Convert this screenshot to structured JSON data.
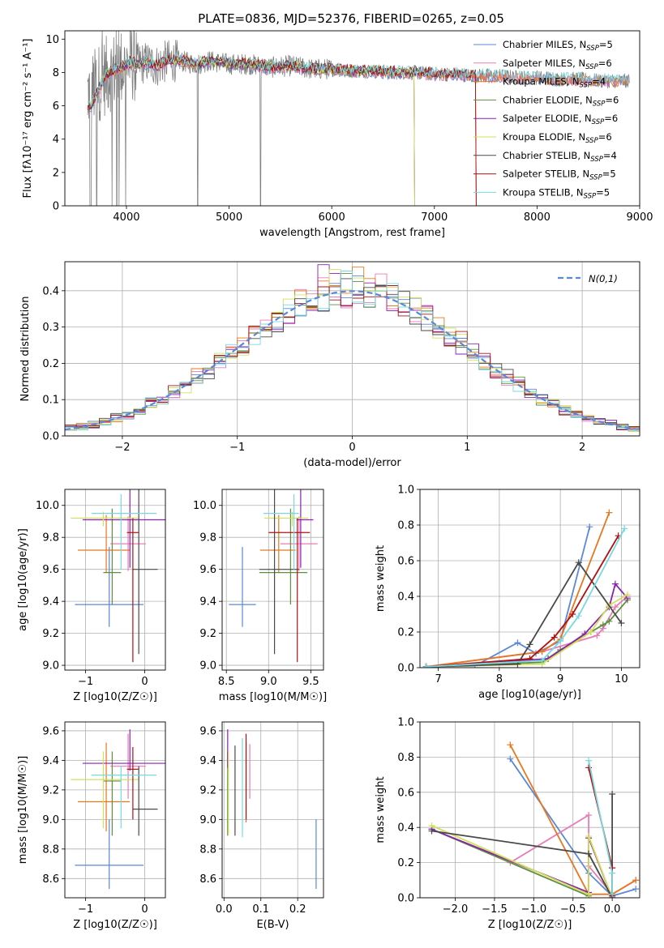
{
  "colors": {
    "Chabrier MILES": "#5b87d8",
    "Salpeter MILES": "#e87bb8",
    "Kroupa MILES": "#e6781f",
    "Chabrier ELODIE": "#5e8f3e",
    "Salpeter ELODIE": "#8a22b0",
    "Kroupa ELODIE": "#d2e05a",
    "Chabrier STELIB": "#4a4a4a",
    "Salpeter STELIB": "#b01010",
    "Kroupa STELIB": "#78d8e0"
  },
  "chart_data": [
    {
      "id": "spectrum",
      "type": "line",
      "title": "PLATE=0836, MJD=52376, FIBERID=0265, z=0.05",
      "xlabel": "wavelength [Angstrom, rest frame]",
      "ylabel": "Flux [fλ10⁻¹⁷ erg cm⁻² s⁻¹ A⁻¹]",
      "xlim": [
        3400,
        9000
      ],
      "ylim": [
        0,
        10.5
      ],
      "xticks": [
        4000,
        5000,
        6000,
        7000,
        8000,
        9000
      ],
      "yticks": [
        0,
        2,
        4,
        6,
        8,
        10
      ],
      "data_series": {
        "name": "",
        "color": "#808080",
        "x": [
          3650,
          3700,
          3750,
          3800,
          3850,
          3900,
          3950,
          4000,
          4050,
          4100,
          4200,
          4300,
          4400,
          4500,
          4600,
          4700,
          4800,
          4900,
          5000,
          5200,
          5400,
          5600,
          5800,
          6000,
          6200,
          6400,
          6600,
          6800,
          7000,
          7200,
          7400,
          7600,
          7800,
          8000,
          8200,
          8400,
          8600,
          8800
        ],
        "y": [
          6.8,
          7.2,
          7.5,
          7.8,
          8.0,
          8.2,
          8.3,
          8.5,
          8.6,
          8.5,
          8.6,
          8.4,
          8.7,
          8.7,
          8.6,
          8.5,
          8.7,
          8.6,
          8.5,
          8.5,
          8.3,
          8.4,
          8.2,
          8.2,
          8.1,
          8.1,
          8.0,
          8.0,
          7.9,
          7.9,
          7.8,
          7.8,
          7.7,
          7.7,
          7.6,
          7.6,
          7.5,
          7.5
        ]
      },
      "legend": [
        {
          "label": "Chabrier MILES, N",
          "ssp": 5
        },
        {
          "label": "Salpeter MILES, N",
          "ssp": 6
        },
        {
          "label": "Kroupa MILES, N",
          "ssp": 4
        },
        {
          "label": "Chabrier ELODIE, N",
          "ssp": 6
        },
        {
          "label": "Salpeter ELODIE, N",
          "ssp": 6
        },
        {
          "label": "Kroupa ELODIE, N",
          "ssp": 6
        },
        {
          "label": "Chabrier STELIB, N",
          "ssp": 4
        },
        {
          "label": "Salpeter STELIB, N",
          "ssp": 5
        },
        {
          "label": "Kroupa STELIB, N",
          "ssp": 5
        }
      ],
      "ssp_subscript": "SSP",
      "legend_position": "upper right"
    },
    {
      "id": "residuals",
      "type": "line",
      "xlabel": "(data-model)/error",
      "ylabel": "Normed distribution",
      "xlim": [
        -2.5,
        2.5
      ],
      "ylim": [
        0,
        0.48
      ],
      "xticks": [
        -2,
        -1,
        0,
        1,
        2
      ],
      "yticks": [
        0.0,
        0.1,
        0.2,
        0.3,
        0.4
      ],
      "gaussian_label": "N(0,1)",
      "legend_position": "upper right",
      "grid": true
    },
    {
      "id": "age_vs_Z",
      "type": "scatter",
      "xlabel": "Z [log10(Z/Z☉)]",
      "ylabel": "age  [log10(age/yr)]",
      "xlim": [
        -1.35,
        0.35
      ],
      "ylim": [
        8.97,
        10.1
      ],
      "xticks": [
        -1,
        0
      ],
      "yticks": [
        9.0,
        9.2,
        9.4,
        9.6,
        9.8,
        10.0
      ],
      "points": [
        {
          "model": "Chabrier MILES",
          "x": -0.6,
          "xerr": [
            0.58,
            0.58
          ],
          "y": 9.38,
          "yerr": [
            0.14,
            0.36
          ]
        },
        {
          "model": "Salpeter MILES",
          "x": -0.28,
          "xerr": [
            0.3,
            0.3
          ],
          "y": 9.76,
          "yerr": [
            0.17,
            0.17
          ]
        },
        {
          "model": "Kroupa MILES",
          "x": -0.65,
          "xerr": [
            0.48,
            0.4
          ],
          "y": 9.72,
          "yerr": [
            0.14,
            0.22
          ]
        },
        {
          "model": "Chabrier ELODIE",
          "x": -0.55,
          "xerr": [
            0.15,
            0.15
          ],
          "y": 9.58,
          "yerr": [
            0.2,
            0.4
          ]
        },
        {
          "model": "Salpeter ELODIE",
          "x": -0.25,
          "xerr": [
            0.8,
            0.8
          ],
          "y": 9.91,
          "yerr": [
            0.3,
            0.2
          ]
        },
        {
          "model": "Kroupa ELODIE",
          "x": -0.7,
          "xerr": [
            0.55,
            0.6
          ],
          "y": 9.92,
          "yerr": [
            0.05,
            0.04
          ]
        },
        {
          "model": "Chabrier STELIB",
          "x": -0.1,
          "xerr": [
            0.1,
            0.32
          ],
          "y": 9.6,
          "yerr": [
            0.53,
            0.52
          ]
        },
        {
          "model": "Salpeter STELIB",
          "x": -0.2,
          "xerr": [
            0.1,
            0.1
          ],
          "y": 9.83,
          "yerr": [
            0.81,
            0.09
          ]
        },
        {
          "model": "Kroupa STELIB",
          "x": -0.4,
          "xerr": [
            0.5,
            0.6
          ],
          "y": 9.95,
          "yerr": [
            0.35,
            0.12
          ]
        }
      ]
    },
    {
      "id": "age_vs_mass",
      "type": "scatter",
      "xlabel": "mass [log10(M/M☉)]",
      "xlim": [
        8.45,
        9.65
      ],
      "ylim": [
        8.97,
        10.1
      ],
      "xticks": [
        8.5,
        9.0,
        9.5
      ],
      "yticks": [
        9.0,
        9.2,
        9.4,
        9.6,
        9.8,
        10.0
      ],
      "points": [
        {
          "model": "Chabrier MILES",
          "x": 8.69,
          "xerr": [
            0.16,
            0.16
          ],
          "y": 9.38,
          "yerr": [
            0.14,
            0.36
          ]
        },
        {
          "model": "Salpeter MILES",
          "x": 9.36,
          "xerr": [
            0.22,
            0.22
          ],
          "y": 9.76,
          "yerr": [
            0.17,
            0.17
          ]
        },
        {
          "model": "Kroupa MILES",
          "x": 9.12,
          "xerr": [
            0.22,
            0.2
          ],
          "y": 9.72,
          "yerr": [
            0.14,
            0.22
          ]
        },
        {
          "model": "Chabrier ELODIE",
          "x": 9.26,
          "xerr": [
            0.37,
            0.2
          ],
          "y": 9.58,
          "yerr": [
            0.2,
            0.4
          ]
        },
        {
          "model": "Salpeter ELODIE",
          "x": 9.38,
          "xerr": [
            0.05,
            0.15
          ],
          "y": 9.91,
          "yerr": [
            0.3,
            0.2
          ]
        },
        {
          "model": "Kroupa ELODIE",
          "x": 9.28,
          "xerr": [
            0.33,
            0.19
          ],
          "y": 9.92,
          "yerr": [
            0.05,
            0.04
          ]
        },
        {
          "model": "Chabrier STELIB",
          "x": 9.07,
          "xerr": [
            0.18,
            0.29
          ],
          "y": 9.6,
          "yerr": [
            0.53,
            0.52
          ]
        },
        {
          "model": "Salpeter STELIB",
          "x": 9.34,
          "xerr": [
            0.34,
            0.15
          ],
          "y": 9.83,
          "yerr": [
            0.81,
            0.09
          ]
        },
        {
          "model": "Kroupa STELIB",
          "x": 9.3,
          "xerr": [
            0.36,
            0.06
          ],
          "y": 9.95,
          "yerr": [
            0.35,
            0.12
          ]
        }
      ]
    },
    {
      "id": "mass_weight_vs_age",
      "type": "line",
      "xlabel": "age  [log10(age/yr)]",
      "ylabel": "mass weight",
      "xlim": [
        6.7,
        10.3
      ],
      "ylim": [
        0,
        1
      ],
      "xticks": [
        7,
        8,
        9,
        10
      ],
      "yticks": [
        0.0,
        0.2,
        0.4,
        0.6,
        0.8,
        1.0
      ],
      "series": [
        {
          "name": "Chabrier MILES",
          "x": [
            6.8,
            7.6,
            8.3,
            8.6,
            9.0,
            9.48
          ],
          "y": [
            0.005,
            0.01,
            0.14,
            0.08,
            0.15,
            0.79
          ]
        },
        {
          "name": "Salpeter MILES",
          "x": [
            6.8,
            8.7,
            9.6,
            9.7,
            9.9,
            10.1
          ],
          "y": [
            0.005,
            0.09,
            0.18,
            0.22,
            0.34,
            0.4
          ]
        },
        {
          "name": "Kroupa MILES",
          "x": [
            6.8,
            8.7,
            9.0,
            9.8
          ],
          "y": [
            0.005,
            0.09,
            0.16,
            0.87
          ]
        },
        {
          "name": "Chabrier ELODIE",
          "x": [
            6.8,
            8.7,
            9.0,
            9.5,
            9.7,
            9.8,
            10.1
          ],
          "y": [
            0.005,
            0.03,
            0.1,
            0.2,
            0.24,
            0.26,
            0.38
          ]
        },
        {
          "name": "Salpeter ELODIE",
          "x": [
            6.8,
            8.8,
            9.4,
            9.8,
            9.9,
            10.1
          ],
          "y": [
            0.005,
            0.05,
            0.19,
            0.34,
            0.47,
            0.39
          ]
        },
        {
          "name": "Kroupa ELODIE",
          "x": [
            6.8,
            8.7,
            9.5,
            9.8,
            10.1
          ],
          "y": [
            0.005,
            0.02,
            0.2,
            0.35,
            0.41
          ]
        },
        {
          "name": "Chabrier STELIB",
          "x": [
            6.8,
            8.3,
            8.5,
            9.3,
            10.0
          ],
          "y": [
            0.005,
            0.02,
            0.13,
            0.59,
            0.25
          ]
        },
        {
          "name": "Salpeter STELIB",
          "x": [
            6.8,
            8.5,
            8.9,
            9.2,
            9.95
          ],
          "y": [
            0.005,
            0.05,
            0.17,
            0.3,
            0.74
          ]
        },
        {
          "name": "Kroupa STELIB",
          "x": [
            6.8,
            8.7,
            9.0,
            9.3,
            10.05
          ],
          "y": [
            0.005,
            0.04,
            0.15,
            0.29,
            0.78
          ]
        }
      ]
    },
    {
      "id": "mass_vs_Z",
      "type": "scatter",
      "xlabel": "Z [log10(Z/Z☉)]",
      "ylabel": "mass [log10(M/M☉)]",
      "xlim": [
        -1.35,
        0.35
      ],
      "ylim": [
        8.47,
        9.66
      ],
      "xticks": [
        -1,
        0
      ],
      "yticks": [
        8.6,
        8.8,
        9.0,
        9.2,
        9.4,
        9.6
      ],
      "points": [
        {
          "model": "Chabrier MILES",
          "x": -0.6,
          "xerr": [
            0.58,
            0.58
          ],
          "y": 8.69,
          "yerr": [
            0.16,
            0.31
          ]
        },
        {
          "model": "Salpeter MILES",
          "x": -0.28,
          "xerr": [
            0.3,
            0.3
          ],
          "y": 9.36,
          "yerr": [
            0.22,
            0.22
          ]
        },
        {
          "model": "Kroupa MILES",
          "x": -0.65,
          "xerr": [
            0.48,
            0.4
          ],
          "y": 9.12,
          "yerr": [
            0.2,
            0.4
          ]
        },
        {
          "model": "Chabrier ELODIE",
          "x": -0.55,
          "xerr": [
            0.15,
            0.15
          ],
          "y": 9.26,
          "yerr": [
            0.37,
            0.2
          ]
        },
        {
          "model": "Salpeter ELODIE",
          "x": -0.25,
          "xerr": [
            0.8,
            0.8
          ],
          "y": 9.38,
          "yerr": [
            0.05,
            0.23
          ]
        },
        {
          "model": "Kroupa ELODIE",
          "x": -0.7,
          "xerr": [
            0.55,
            0.6
          ],
          "y": 9.27,
          "yerr": [
            0.33,
            0.19
          ]
        },
        {
          "model": "Chabrier STELIB",
          "x": -0.1,
          "xerr": [
            0.1,
            0.32
          ],
          "y": 9.07,
          "yerr": [
            0.18,
            0.29
          ]
        },
        {
          "model": "Salpeter STELIB",
          "x": -0.2,
          "xerr": [
            0.1,
            0.1
          ],
          "y": 9.34,
          "yerr": [
            0.34,
            0.15
          ]
        },
        {
          "model": "Kroupa STELIB",
          "x": -0.4,
          "xerr": [
            0.5,
            0.6
          ],
          "y": 9.3,
          "yerr": [
            0.36,
            0.06
          ]
        }
      ]
    },
    {
      "id": "mass_vs_ebv",
      "type": "scatter",
      "xlabel": "E(B-V)",
      "xlim": [
        -0.005,
        0.27
      ],
      "ylim": [
        8.47,
        9.66
      ],
      "xticks": [
        0.0,
        0.1,
        0.2
      ],
      "yticks": [
        8.6,
        8.8,
        9.0,
        9.2,
        9.4,
        9.6
      ],
      "points": [
        {
          "model": "Chabrier MILES",
          "x": 0.25,
          "y": 8.69,
          "yerr": [
            0.16,
            0.31
          ]
        },
        {
          "model": "Salpeter MILES",
          "x": 0.07,
          "y": 9.36,
          "yerr": [
            0.22,
            0.15
          ]
        },
        {
          "model": "Kroupa MILES",
          "x": 0.06,
          "y": 9.12,
          "yerr": [
            0.14,
            0.4
          ]
        },
        {
          "model": "Chabrier ELODIE",
          "x": 0.01,
          "y": 9.26,
          "yerr": [
            0.37,
            0.2
          ]
        },
        {
          "model": "Salpeter ELODIE",
          "x": 0.01,
          "y": 9.45,
          "yerr": [
            0.1,
            0.16
          ]
        },
        {
          "model": "Kroupa ELODIE",
          "x": 0.012,
          "y": 9.27,
          "yerr": [
            0.37,
            0.2
          ]
        },
        {
          "model": "Chabrier STELIB",
          "x": 0.03,
          "y": 9.07,
          "yerr": [
            0.18,
            0.43
          ]
        },
        {
          "model": "Salpeter STELIB",
          "x": 0.06,
          "y": 9.34,
          "yerr": [
            0.34,
            0.24
          ]
        },
        {
          "model": "Kroupa STELIB",
          "x": 0.05,
          "y": 9.3,
          "yerr": [
            0.42,
            0.25
          ]
        }
      ]
    },
    {
      "id": "mass_weight_vs_Z",
      "type": "line",
      "xlabel": "Z [log10(Z/Z☉)]",
      "ylabel": "mass weight",
      "xlim": [
        -2.45,
        0.35
      ],
      "ylim": [
        0,
        1
      ],
      "xticks": [
        -2.0,
        -1.5,
        -1.0,
        -0.5,
        0.0
      ],
      "yticks": [
        0.0,
        0.2,
        0.4,
        0.6,
        0.8,
        1.0
      ],
      "series": [
        {
          "name": "Chabrier MILES",
          "x": [
            -1.3,
            -0.3,
            0.0,
            0.3
          ],
          "y": [
            0.79,
            0.14,
            0.01,
            0.05
          ]
        },
        {
          "name": "Salpeter MILES",
          "x": [
            -1.3,
            -0.3,
            -0.3,
            0.0,
            0.3
          ],
          "y": [
            0.2,
            0.47,
            0.18,
            0.02,
            0.1
          ]
        },
        {
          "name": "Kroupa MILES",
          "x": [
            -1.3,
            -0.3,
            0.0,
            0.3
          ],
          "y": [
            0.87,
            0.02,
            0.02,
            0.1
          ]
        },
        {
          "name": "Chabrier ELODIE",
          "x": [
            -2.3,
            -0.3,
            -0.3,
            0.0
          ],
          "y": [
            0.39,
            0.01,
            0.25,
            0.0
          ]
        },
        {
          "name": "Salpeter ELODIE",
          "x": [
            -2.3,
            -0.3,
            -0.3,
            0.0
          ],
          "y": [
            0.39,
            0.03,
            0.34,
            0.0
          ]
        },
        {
          "name": "Kroupa ELODIE",
          "x": [
            -2.3,
            -0.3,
            -0.3,
            0.0
          ],
          "y": [
            0.41,
            0.02,
            0.35,
            0.0
          ]
        },
        {
          "name": "Chabrier STELIB",
          "x": [
            -2.3,
            -0.3,
            0.0,
            0.0
          ],
          "y": [
            0.38,
            0.25,
            0.0,
            0.59
          ]
        },
        {
          "name": "Salpeter STELIB",
          "x": [
            -0.3,
            0.0,
            0.0
          ],
          "y": [
            0.74,
            0.17,
            0.01
          ]
        },
        {
          "name": "Kroupa STELIB",
          "x": [
            -0.3,
            0.0,
            0.0
          ],
          "y": [
            0.78,
            0.14,
            0.02
          ]
        }
      ]
    }
  ]
}
